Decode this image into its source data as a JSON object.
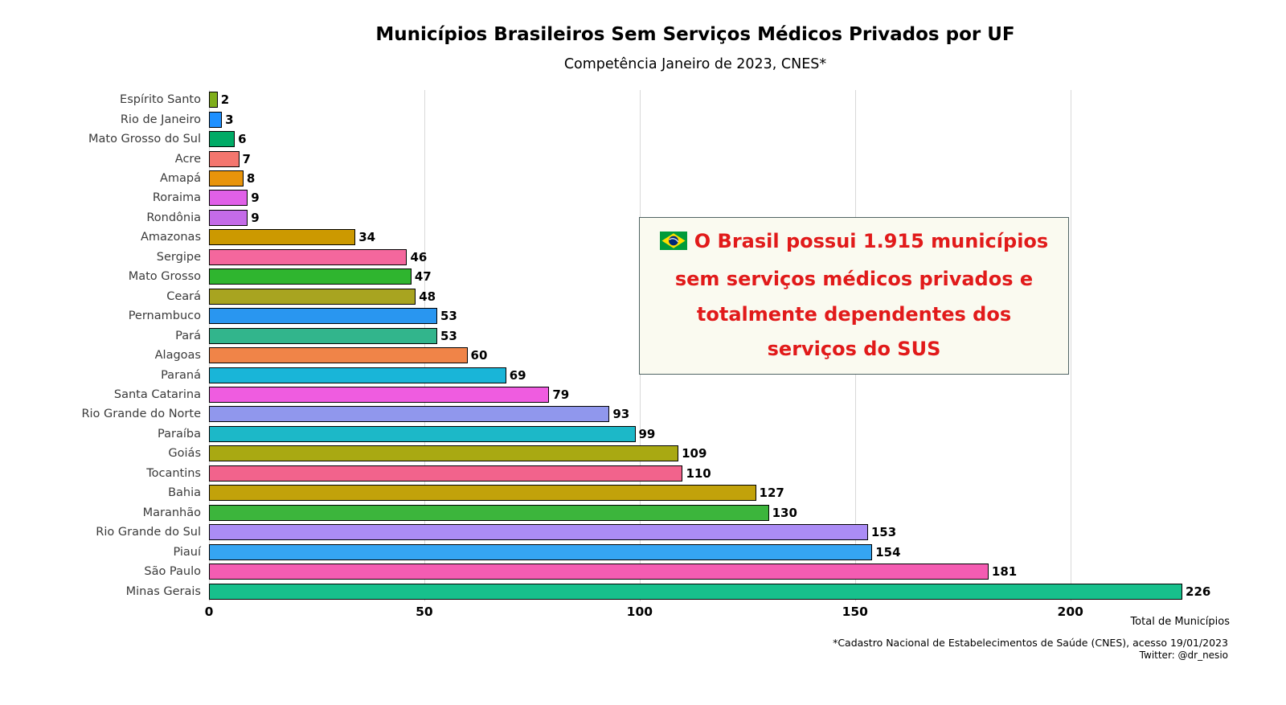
{
  "title": "Municípios Brasileiros Sem Serviços Médicos Privados por UF",
  "subtitle": "Competência Janeiro de 2023, CNES*",
  "chart_data": {
    "type": "bar",
    "orientation": "horizontal",
    "title": "Municípios Brasileiros Sem Serviços Médicos Privados por UF",
    "subtitle": "Competência Janeiro de 2023, CNES*",
    "categories": [
      "Espírito Santo",
      "Rio de Janeiro",
      "Mato Grosso do Sul",
      "Acre",
      "Amapá",
      "Roraima",
      "Rondônia",
      "Amazonas",
      "Sergipe",
      "Mato Grosso",
      "Ceará",
      "Pernambuco",
      "Pará",
      "Alagoas",
      "Paraná",
      "Santa Catarina",
      "Rio Grande do Norte",
      "Paraíba",
      "Goiás",
      "Tocantins",
      "Bahia",
      "Maranhão",
      "Rio Grande do Sul",
      "Piauí",
      "São Paulo",
      "Minas Gerais"
    ],
    "values": [
      2,
      3,
      6,
      7,
      8,
      9,
      9,
      34,
      46,
      47,
      48,
      53,
      53,
      60,
      69,
      79,
      93,
      99,
      109,
      110,
      127,
      130,
      153,
      154,
      181,
      226
    ],
    "colors": [
      "#7fae1b",
      "#1e90ff",
      "#00ab66",
      "#f4766e",
      "#e8940a",
      "#e060e8",
      "#c46be8",
      "#cc9900",
      "#f4679d",
      "#2fb52f",
      "#a8a420",
      "#2996f0",
      "#32b58c",
      "#f08448",
      "#19b5d8",
      "#ef5ce0",
      "#9097ed",
      "#1cb8c8",
      "#a9a912",
      "#f2638c",
      "#c2a20a",
      "#3cb53c",
      "#ab8cf5",
      "#35a5f2",
      "#f45cb2",
      "#17c08c"
    ],
    "xlabel": "Total de Municípios",
    "ylabel": "",
    "xlim": [
      0,
      237
    ],
    "xticks": [
      0,
      50,
      100,
      150,
      200
    ],
    "grid": "vertical",
    "grid_color": "#d8d8d8",
    "bar_edge_color": "#000000"
  },
  "annotation": {
    "flag_icon": "brazil-flag",
    "text": "O Brasil possui 1.915 municípios sem serviços médicos privados e totalmente dependentes dos serviços do SUS",
    "text_color": "#e11a1a",
    "background": "#fafaf0"
  },
  "footer": {
    "source": "*Cadastro Nacional de Estabelecimentos de Saúde (CNES), acesso 19/01/2023",
    "twitter": "Twitter: @dr_nesio"
  }
}
